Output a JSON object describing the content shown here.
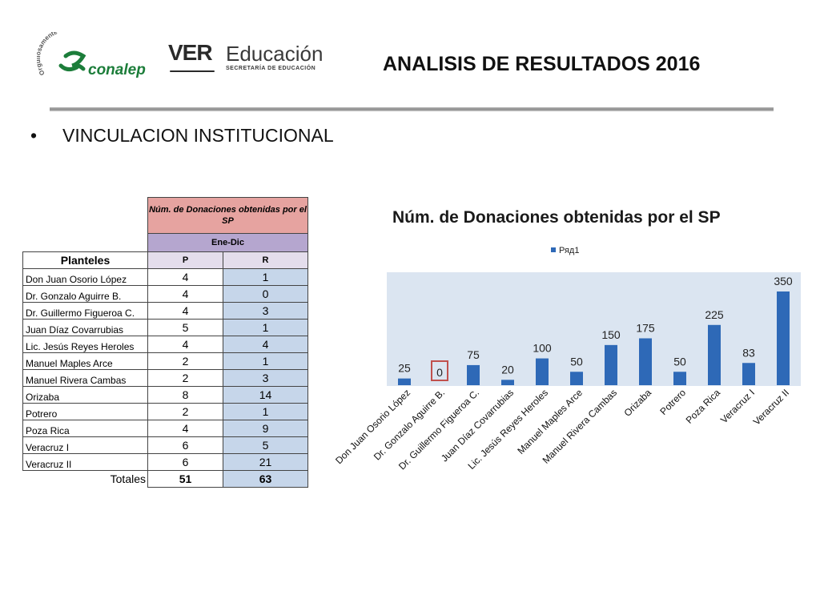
{
  "header": {
    "title": "ANALISIS DE RESULTADOS 2016",
    "conalep_arc_text": "Orgullosamente",
    "conalep_name": "conalep",
    "ver_text": "VER",
    "educacion_text": "Educación",
    "secretaria_text": "SECRETARÍA DE EDUCACIÓN"
  },
  "bullet": {
    "symbol": "•",
    "text": "VINCULACION INSTITUCIONAL"
  },
  "table": {
    "header_main": "Núm. de Donaciones obtenidas por el SP",
    "header_period": "Ene-Dic",
    "col_name": "Planteles",
    "col_p": "P",
    "col_r": "R",
    "rows": [
      {
        "name": "Don Juan Osorio López",
        "p": "4",
        "r": "1"
      },
      {
        "name": "Dr. Gonzalo Aguirre B.",
        "p": "4",
        "r": "0"
      },
      {
        "name": "Dr. Guillermo Figueroa C.",
        "p": "4",
        "r": "3"
      },
      {
        "name": "Juan Díaz Covarrubias",
        "p": "5",
        "r": "1"
      },
      {
        "name": "Lic. Jesús Reyes Heroles",
        "p": "4",
        "r": "4"
      },
      {
        "name": "Manuel Maples Arce",
        "p": "2",
        "r": "1"
      },
      {
        "name": "Manuel Rivera Cambas",
        "p": "2",
        "r": "3"
      },
      {
        "name": "Orizaba",
        "p": "8",
        "r": "14"
      },
      {
        "name": "Potrero",
        "p": "2",
        "r": "1"
      },
      {
        "name": "Poza Rica",
        "p": "4",
        "r": "9"
      },
      {
        "name": "Veracruz I",
        "p": "6",
        "r": "5"
      },
      {
        "name": "Veracruz II",
        "p": "6",
        "r": "21"
      }
    ],
    "totals_label": "Totales",
    "totals_p": "51",
    "totals_r": "63"
  },
  "colors": {
    "bar": "#2e69b7",
    "plot_bg": "#dbe5f1",
    "highlight": "#c0504d",
    "header_pink": "#e6a3a0",
    "header_purple": "#b5a6cf",
    "r_cells": "#c6d6ea",
    "conalep_green": "#1c7d3a"
  },
  "chart_data": {
    "type": "bar",
    "title": "Núm. de Donaciones obtenidas por el SP",
    "categories": [
      "Don Juan Osorio López",
      "Dr. Gonzalo Aguirre B.",
      "Dr. Guillermo Figueroa C.",
      "Juan Díaz Covarrubias",
      "Lic. Jesús Reyes Heroles",
      "Manuel Maples Arce",
      "Manuel Rivera Cambas",
      "Orizaba",
      "Potrero",
      "Poza Rica",
      "Veracruz I",
      "Veracruz II"
    ],
    "series": [
      {
        "name": "Ряд1",
        "values": [
          25,
          0,
          75,
          20,
          100,
          50,
          150,
          175,
          50,
          225,
          83,
          350
        ]
      }
    ],
    "data_labels": [
      "25",
      "0",
      "75",
      "20",
      "100",
      "50",
      "150",
      "175",
      "50",
      "225",
      "83",
      "350"
    ],
    "highlighted_labels": [
      "0"
    ],
    "ylim": [
      0,
      350
    ],
    "grid": false,
    "legend_position": "top"
  }
}
